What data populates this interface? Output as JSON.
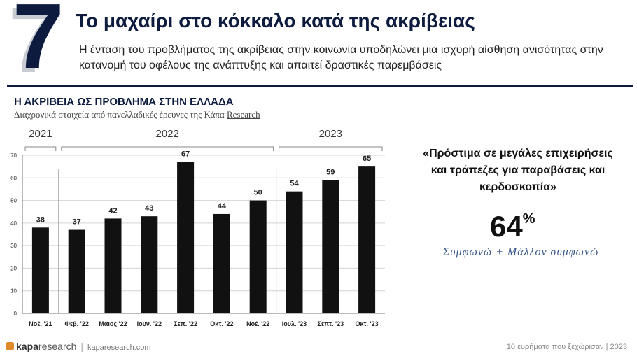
{
  "slide": {
    "number": "7",
    "title": "Το μαχαίρι στο κόκκαλο κατά της ακρίβειας",
    "subtitle": "Η ένταση του προβλήματος της ακρίβειας στην κοινωνία υποδηλώνει μια ισχυρή αίσθηση ανισότητας στην κατανομή του οφέλους της ανάπτυξης και απαιτεί δραστικές παρεμβάσεις"
  },
  "chart_data": {
    "type": "bar",
    "title": "Η ΑΚΡΙΒΕΙΑ ΩΣ ΠΡΟΒΛΗΜΑ ΣΤΗΝ ΕΛΛΑΔΑ",
    "subtitle_prefix": "Διαχρονικά στοιχεία από πανελλαδικές έρευνες της Κάπα ",
    "subtitle_suffix": "Research",
    "categories": [
      "Νοέ. '21",
      "Φεβ. '22",
      "Μάιος '22",
      "Ιουν. '22",
      "Σεπ. '22",
      "Οκτ. '22",
      "Νοέ. '22",
      "Ιουλ. '23",
      "Σεπτ. '23",
      "Οκτ. '23"
    ],
    "values": [
      38,
      37,
      42,
      43,
      67,
      44,
      50,
      54,
      59,
      65
    ],
    "ylim": [
      0,
      70
    ],
    "yticks": [
      0,
      10,
      20,
      30,
      40,
      50,
      60,
      70
    ],
    "grid": true,
    "bar_color": "#111111",
    "year_groups": [
      {
        "label": "2021",
        "start": 0,
        "end": 0
      },
      {
        "label": "2022",
        "start": 1,
        "end": 6
      },
      {
        "label": "2023",
        "start": 7,
        "end": 9
      }
    ]
  },
  "highlight": {
    "quote": "«Πρόστιμα σε μεγάλες επιχειρήσεις και τράπεζες για παραβάσεις και κερδοσκοπία»",
    "percent_value": "64",
    "percent_sign": "%",
    "agree_label": "Συμφωνώ + Μάλλον συμφωνώ"
  },
  "footer": {
    "logo_text_bold": "kapa",
    "logo_text": "research",
    "url": "kaparesearch.com",
    "right_text": "10 ευρήματα που ξεχώρισαν | 2023"
  },
  "colors": {
    "navy": "#0d1b3e",
    "accent": "#e08a2c",
    "italic_blue": "#3c5a8c"
  }
}
